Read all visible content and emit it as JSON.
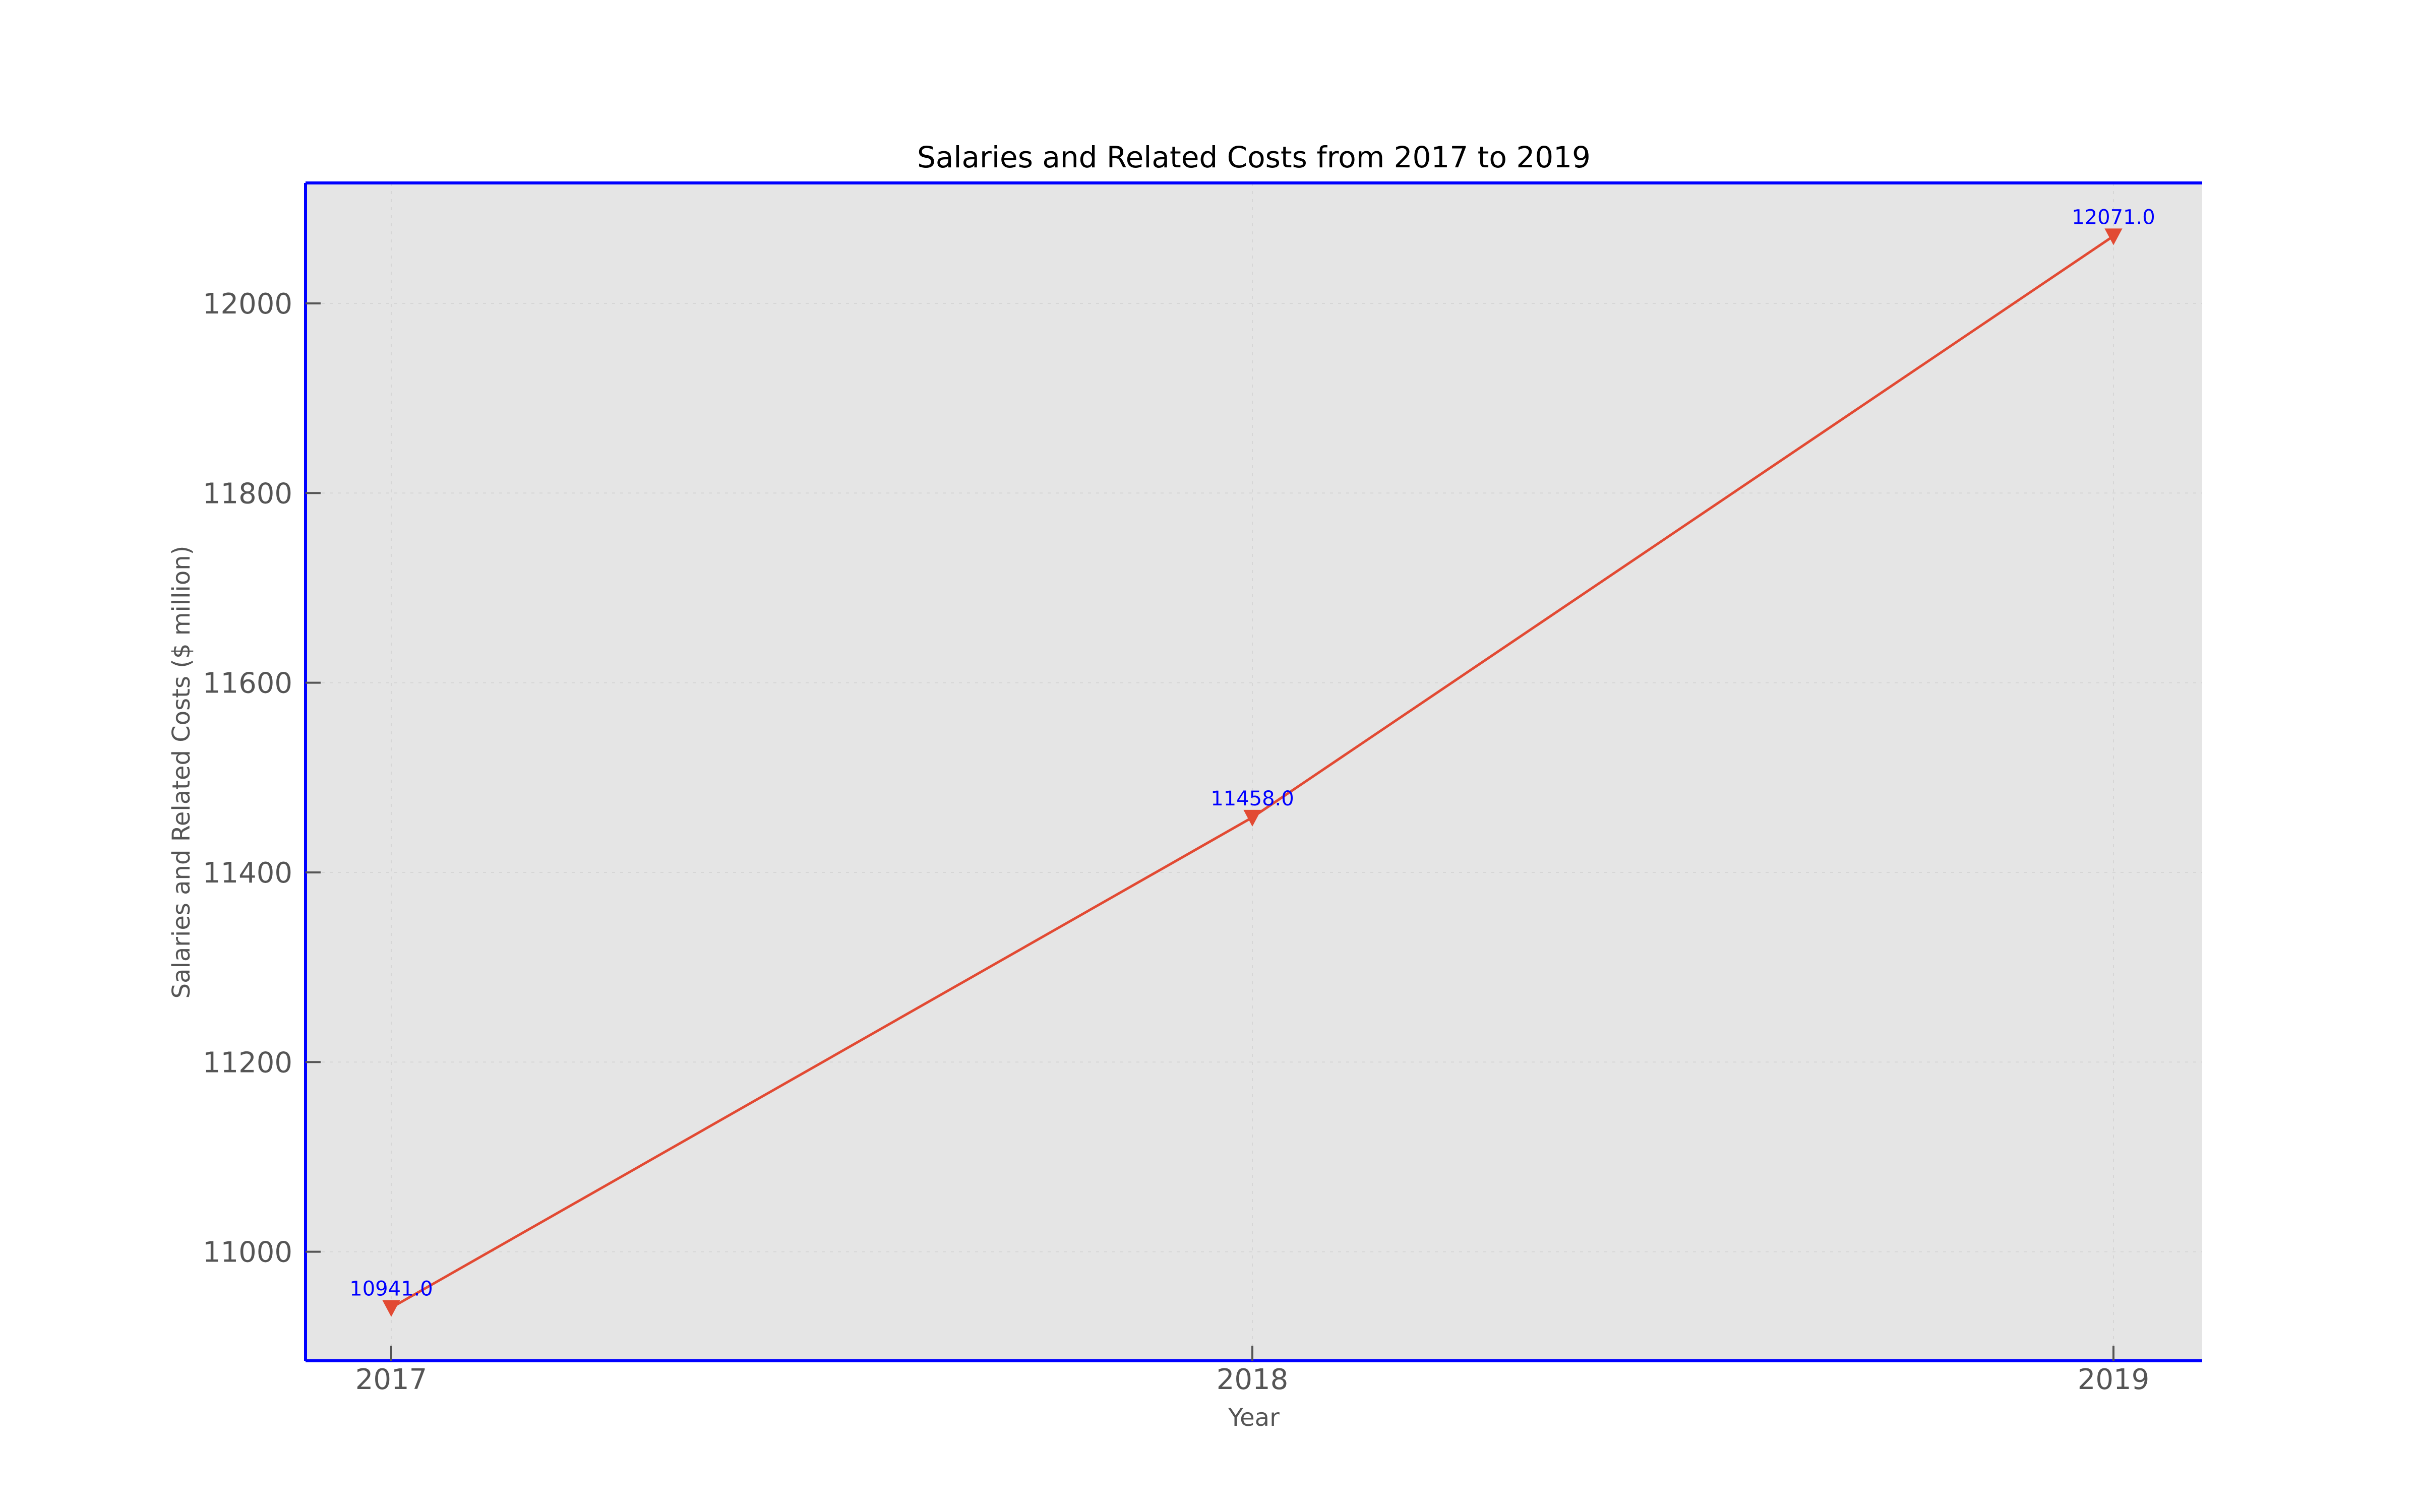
{
  "chart_data": {
    "type": "line",
    "title": "Salaries and Related Costs from 2017 to 2019",
    "xlabel": "Year",
    "ylabel": "Salaries and Related Costs ($ million)",
    "x": [
      "2017",
      "2018",
      "2019"
    ],
    "series": [
      {
        "values": [
          10941.0,
          11458.0,
          12071.0
        ],
        "labels": [
          "10941.0",
          "11458.0",
          "12071.0"
        ],
        "color": "#e24a33",
        "marker": "triangle-down"
      }
    ],
    "y_ticks": [
      11000,
      11200,
      11400,
      11600,
      11800,
      12000
    ],
    "y_tick_labels": [
      "11000",
      "11200",
      "11400",
      "11600",
      "11800",
      "12000"
    ],
    "ylim": [
      10885,
      12127
    ],
    "grid": true,
    "plot_background": "#e5e5e5",
    "frame_color": "#0000ff",
    "label_color": "#0000ff"
  }
}
